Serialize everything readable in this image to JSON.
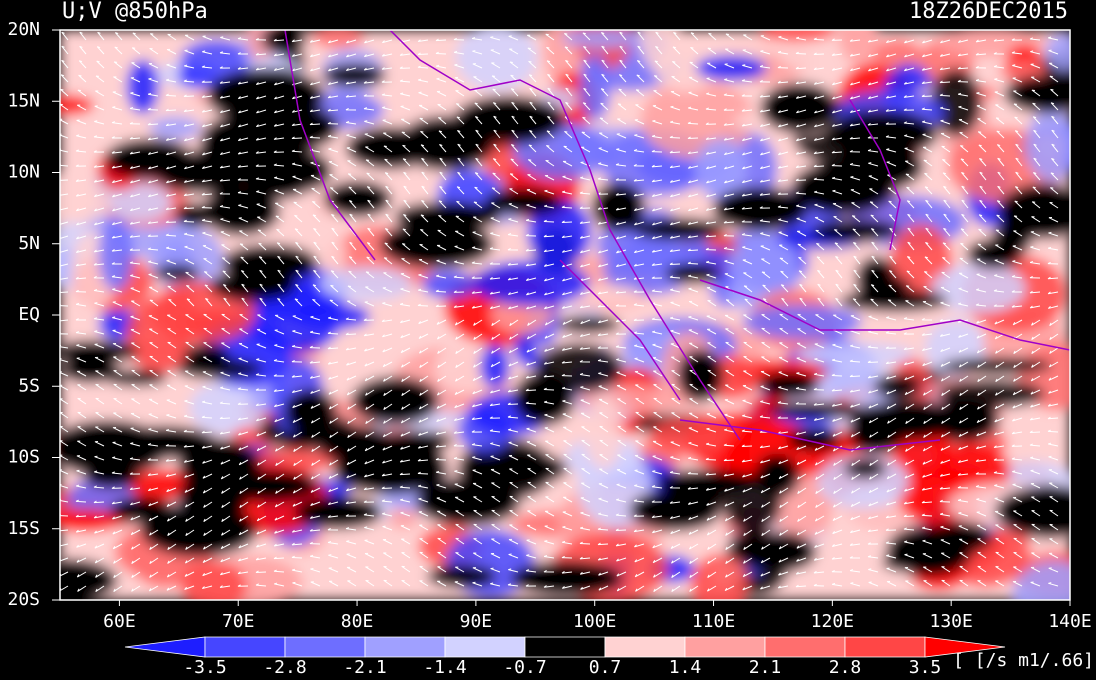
{
  "header": {
    "title": "U;V @850hPa",
    "time": "18Z26DEC2015"
  },
  "map": {
    "lat_labels": [
      "20N",
      "15N",
      "10N",
      "5N",
      "EQ",
      "5S",
      "10S",
      "15S",
      "20S"
    ],
    "lon_labels": [
      "60E",
      "70E",
      "80E",
      "90E",
      "100E",
      "110E",
      "120E",
      "130E",
      "140E"
    ]
  },
  "colorbar": {
    "levels": [
      -3.5,
      -2.8,
      -2.1,
      -1.4,
      -0.7,
      0.7,
      1.4,
      2.1,
      2.8,
      3.5
    ],
    "colors": [
      "#1e1eff",
      "#4646ff",
      "#6e6eff",
      "#a0a0ff",
      "#d2d2ff",
      "#000000",
      "#ffd2d2",
      "#ffa0a0",
      "#ff6e6e",
      "#ff4646",
      "#ff0000"
    ],
    "units": "[ [/s m1/.66]"
  }
}
